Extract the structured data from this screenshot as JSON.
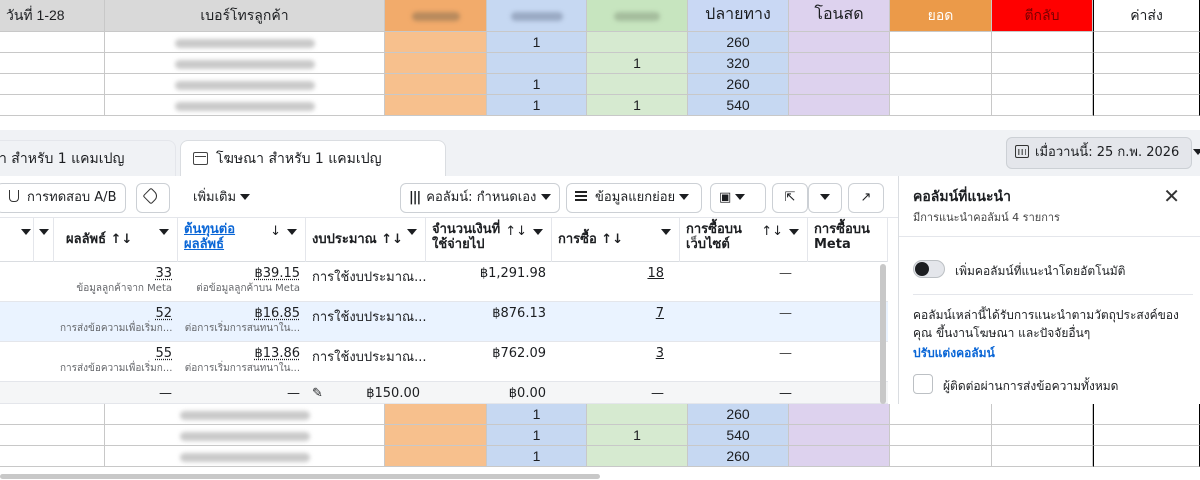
{
  "sheet": {
    "headers": {
      "date": "วันที่ 1-28",
      "phone": "เบอร์โทรลูกค้า",
      "col_a": "",
      "col_b": "",
      "col_c": "",
      "col_d": "ปลายทาง",
      "col_e": "โอนสด",
      "col_f": "ยอด",
      "col_g": "ตีกลับ",
      "col_h": "ค่าส่ง"
    },
    "top_rows": [
      {
        "b": "1",
        "c": "",
        "d": "260"
      },
      {
        "b": "",
        "c": "1",
        "d": "320"
      },
      {
        "b": "1",
        "c": "",
        "d": "260"
      },
      {
        "b": "1",
        "c": "1",
        "d": "540"
      }
    ],
    "bottom_rows": [
      {
        "b": "1",
        "c": "",
        "d": "260"
      },
      {
        "b": "1",
        "c": "1",
        "d": "540"
      },
      {
        "b": "1",
        "c": "",
        "d": "260"
      }
    ],
    "colors": {
      "orange": "#f2ab6b",
      "blue": "#c6d8f2",
      "green": "#c7e5bf",
      "purple": "#ddd2ee",
      "red": "#ff0000"
    }
  },
  "ads": {
    "tabs": [
      {
        "label": "า สำหรับ 1 แคมเปญ"
      },
      {
        "label": "โฆษณา สำหรับ 1 แคมเปญ"
      }
    ],
    "date_range": "เมื่อวานนี้: 25 ก.พ. 2026",
    "toolbar": {
      "ab_test": "การทดสอบ A/B",
      "more": "เพิ่มเติม",
      "columns": "คอลัมน์: กำหนดเอง",
      "breakdown": "ข้อมูลแยกย่อย"
    },
    "columns": [
      {
        "label": "ผลลัพธ์ ↑↓"
      },
      {
        "label": "ต้นทุนต่อผลลัพธ์"
      },
      {
        "label": "งบประมาณ ↑↓"
      },
      {
        "label": "จำนวนเงินที่ใช้จ่ายไป"
      },
      {
        "label": "การซื้อ ↑↓"
      },
      {
        "label": "การซื้อบนเว็บไซต์"
      },
      {
        "label": "การซื้อบน Meta"
      }
    ],
    "sort_icon": "↑↓",
    "sort_down": "↓",
    "rows": [
      {
        "results": "33",
        "results_sub": "ข้อมูลลูกค้าจาก Meta",
        "cost": "฿39.15",
        "cost_sub": "ต่อข้อมูลลูกค้าบน Meta",
        "budget": "การใช้งบประมาณ...",
        "spent": "฿1,291.98",
        "purchases": "18",
        "web": "—"
      },
      {
        "results": "52",
        "results_sub": "การส่งข้อความเพื่อเริ่มก...",
        "cost": "฿16.85",
        "cost_sub": "ต่อการเริ่มการสนทนาใน...",
        "budget": "การใช้งบประมาณ...",
        "spent": "฿876.13",
        "purchases": "7",
        "web": "—"
      },
      {
        "results": "55",
        "results_sub": "การส่งข้อความเพื่อเริ่มก...",
        "cost": "฿13.86",
        "cost_sub": "ต่อการเริ่มการสนทนาใน...",
        "budget": "การใช้งบประมาณ...",
        "spent": "฿762.09",
        "purchases": "3",
        "web": "—"
      },
      {
        "results": "—",
        "results_sub": "",
        "cost": "—",
        "cost_sub": "",
        "budget": "฿150.00",
        "spent": "฿0.00",
        "purchases": "—",
        "web": "—"
      }
    ]
  },
  "panel": {
    "title": "คอลัมน์ที่แนะนำ",
    "subtitle": "มีการแนะนำคอลัมน์ 4 รายการ",
    "toggle_label": "เพิ่มคอลัมน์ที่แนะนำโดยอัตโนมัติ",
    "description": "คอลัมน์เหล่านี้ได้รับการแนะนำตามวัตถุประสงค์ของคุณ ขึ้นงานโฆษณา และปัจจัยอื่นๆ",
    "link": "ปรับแต่งคอลัมน์",
    "checkbox_label": "ผู้ติดต่อผ่านการส่งข้อความทั้งหมด",
    "close": "✕"
  }
}
